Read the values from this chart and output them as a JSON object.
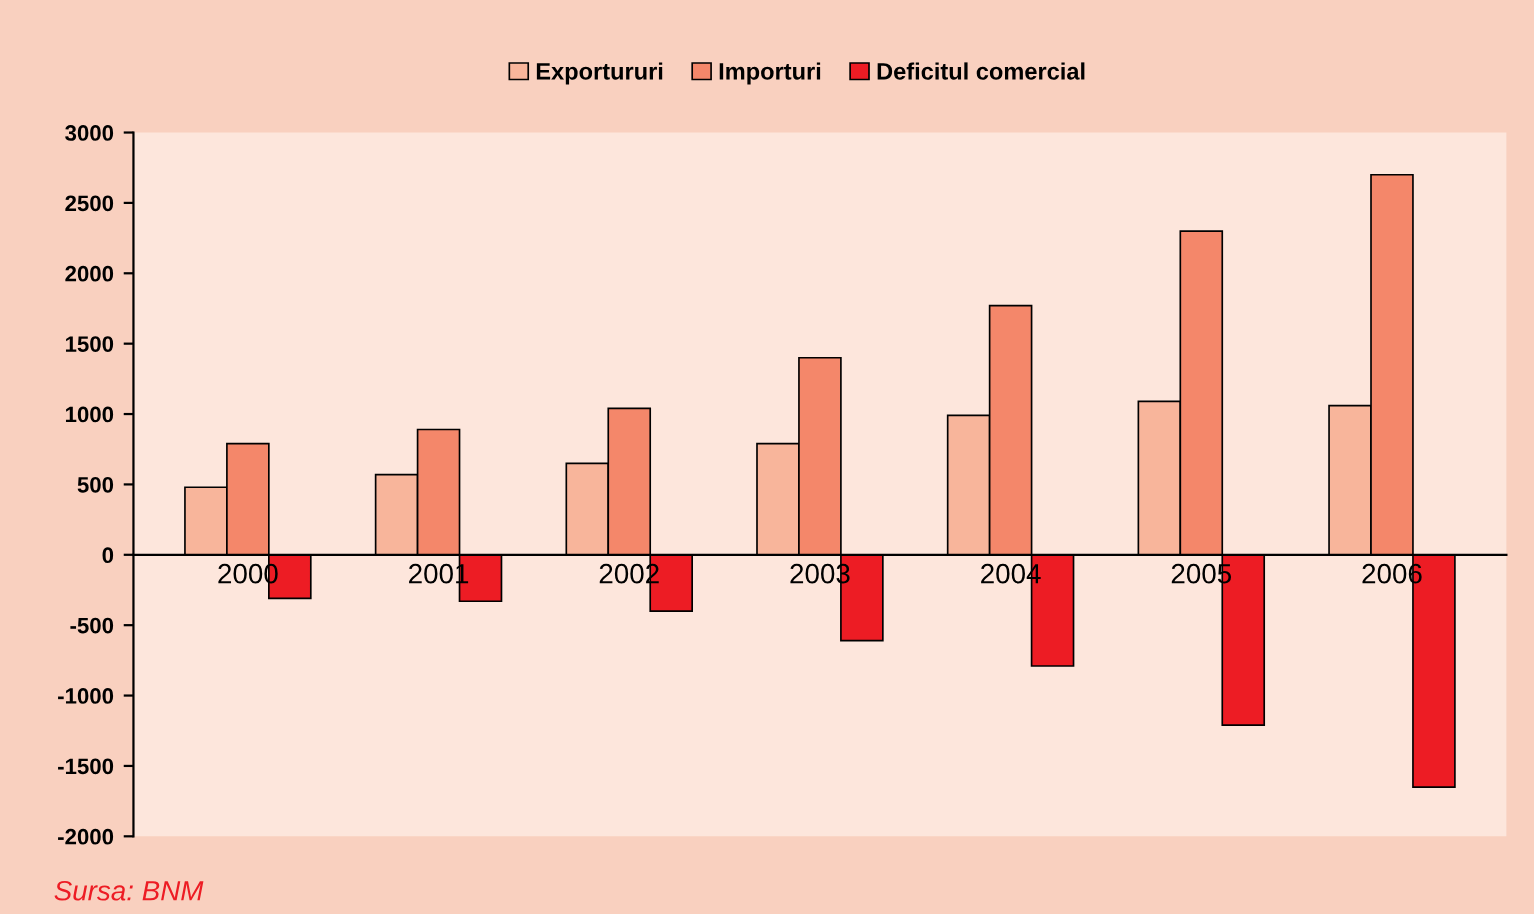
{
  "chart_data": {
    "type": "bar",
    "categories": [
      "2000",
      "2001",
      "2002",
      "2003",
      "2004",
      "2005",
      "2006"
    ],
    "series": [
      {
        "name": "Exportururi",
        "color": "#f8b59b",
        "values": [
          480,
          570,
          650,
          790,
          990,
          1090,
          1060
        ]
      },
      {
        "name": "Importuri",
        "color": "#f4876a",
        "values": [
          790,
          890,
          1040,
          1400,
          1770,
          2300,
          2700
        ]
      },
      {
        "name": "Deficitul comercial",
        "color": "#ed1c24",
        "values": [
          -310,
          -330,
          -400,
          -610,
          -790,
          -1210,
          -1650
        ]
      }
    ],
    "ylim": [
      -2000,
      3000
    ],
    "yticks": [
      -2000,
      -1500,
      -1000,
      -500,
      0,
      500,
      1000,
      1500,
      2000,
      2500,
      3000
    ],
    "grid": false,
    "legend": "top",
    "annotations": [
      "Sursa: BNM"
    ]
  }
}
